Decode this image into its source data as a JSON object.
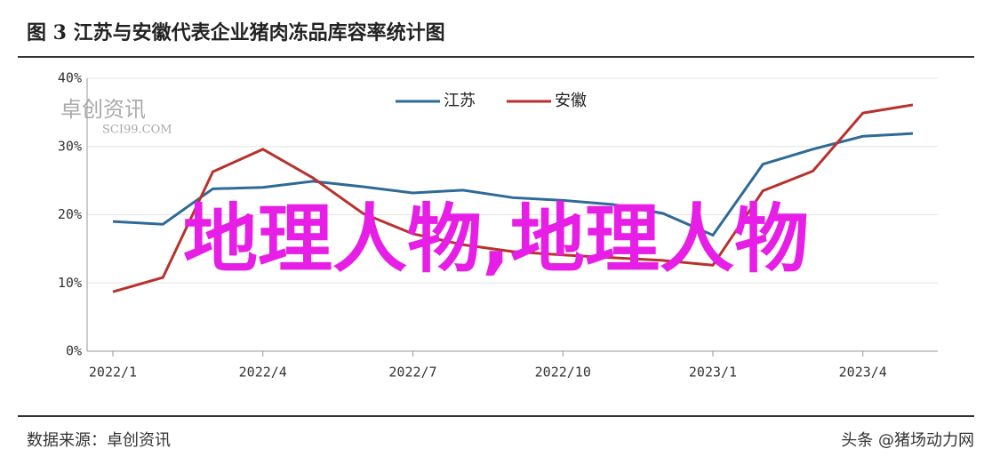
{
  "chart_data": {
    "type": "line",
    "title": "图 3 江苏与安徽代表企业猪肉冻品库容率统计图",
    "categories": [
      "2022/1",
      null,
      null,
      "2022/4",
      null,
      null,
      "2022/7",
      null,
      null,
      "2022/10",
      null,
      null,
      "2023/1",
      null,
      null,
      "2023/4",
      null
    ],
    "series": [
      {
        "name": "江苏",
        "color": "#2f6a96",
        "values": [
          19,
          18.6,
          23.8,
          24,
          24.9,
          24.1,
          23.2,
          23.6,
          22.5,
          22.1,
          21.5,
          20.2,
          17,
          27.4,
          29.6,
          31.5,
          31.9
        ]
      },
      {
        "name": "安徽",
        "color": "#b8322d",
        "values": [
          8.7,
          10.8,
          26.3,
          29.6,
          25.4,
          20.2,
          17.2,
          15.6,
          14.6,
          14.1,
          13.7,
          13.3,
          12.6,
          23.5,
          26.4,
          34.9,
          36.1
        ]
      }
    ],
    "ylim": [
      0,
      40
    ],
    "yticks": [
      {
        "value": 0,
        "label": "0%"
      },
      {
        "value": 10,
        "label": "10%"
      },
      {
        "value": 20,
        "label": "20%"
      },
      {
        "value": 30,
        "label": "30%"
      },
      {
        "value": 40,
        "label": "40%"
      }
    ],
    "grid": true,
    "legend": "top",
    "watermark": [
      "卓创资讯",
      "SCI99.COM"
    ],
    "overlay_text": "地理人物,地理人物",
    "source": "数据来源：卓创资讯",
    "credit": "头条 @猪场动力网"
  }
}
